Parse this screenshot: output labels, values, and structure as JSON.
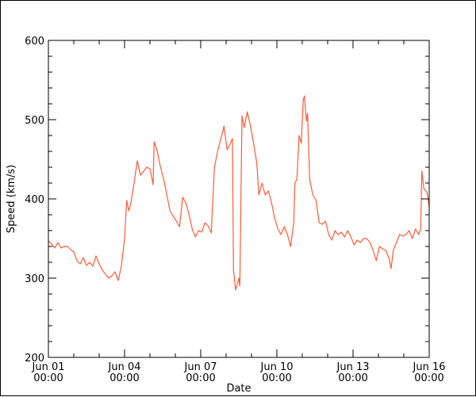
{
  "chart_data": {
    "type": "line",
    "title": "",
    "xlabel": "Date",
    "ylabel": "Speed (km/s)",
    "ylim": [
      200,
      600
    ],
    "xlim": [
      "2024-06-01T00:00",
      "2024-06-16T00:00"
    ],
    "grid": false,
    "colors": {
      "series": "#ff5a36",
      "axis": "#000000"
    },
    "yticks": [
      {
        "value": 200,
        "label": "200"
      },
      {
        "value": 300,
        "label": "300"
      },
      {
        "value": 400,
        "label": "400"
      },
      {
        "value": 500,
        "label": "500"
      },
      {
        "value": 600,
        "label": "600"
      }
    ],
    "xticks": [
      {
        "value": "2024-06-01T00:00",
        "line1": "Jun 01",
        "line2": "00:00"
      },
      {
        "value": "2024-06-04T00:00",
        "line1": "Jun 04",
        "line2": "00:00"
      },
      {
        "value": "2024-06-07T00:00",
        "line1": "Jun 07",
        "line2": "00:00"
      },
      {
        "value": "2024-06-10T00:00",
        "line1": "Jun 10",
        "line2": "00:00"
      },
      {
        "value": "2024-06-13T00:00",
        "line1": "Jun 13",
        "line2": "00:00"
      },
      {
        "value": "2024-06-16T00:00",
        "line1": "Jun 16",
        "line2": "00:00"
      }
    ],
    "series": [
      {
        "values": [
          [
            "2024-06-01T00:00",
            347
          ],
          [
            "2024-06-01T03:00",
            343
          ],
          [
            "2024-06-01T06:00",
            338
          ],
          [
            "2024-06-01T09:00",
            345
          ],
          [
            "2024-06-01T12:00",
            338
          ],
          [
            "2024-06-01T15:00",
            340
          ],
          [
            "2024-06-01T18:00",
            340
          ],
          [
            "2024-06-01T21:00",
            336
          ],
          [
            "2024-06-02T00:00",
            333
          ],
          [
            "2024-06-02T03:00",
            322
          ],
          [
            "2024-06-02T06:00",
            318
          ],
          [
            "2024-06-02T09:00",
            326
          ],
          [
            "2024-06-02T12:00",
            316
          ],
          [
            "2024-06-02T15:00",
            320
          ],
          [
            "2024-06-02T18:00",
            315
          ],
          [
            "2024-06-02T21:00",
            328
          ],
          [
            "2024-06-03T00:00",
            318
          ],
          [
            "2024-06-03T03:00",
            310
          ],
          [
            "2024-06-03T06:00",
            305
          ],
          [
            "2024-06-03T09:00",
            300
          ],
          [
            "2024-06-03T12:00",
            303
          ],
          [
            "2024-06-03T15:00",
            308
          ],
          [
            "2024-06-03T18:00",
            297
          ],
          [
            "2024-06-03T21:00",
            315
          ],
          [
            "2024-06-04T00:00",
            350
          ],
          [
            "2024-06-04T02:00",
            398
          ],
          [
            "2024-06-04T04:00",
            385
          ],
          [
            "2024-06-04T06:00",
            395
          ],
          [
            "2024-06-04T09:00",
            420
          ],
          [
            "2024-06-04T12:00",
            448
          ],
          [
            "2024-06-04T15:00",
            430
          ],
          [
            "2024-06-04T18:00",
            435
          ],
          [
            "2024-06-04T21:00",
            440
          ],
          [
            "2024-06-05T00:00",
            438
          ],
          [
            "2024-06-05T03:00",
            418
          ],
          [
            "2024-06-05T04:00",
            472
          ],
          [
            "2024-06-05T07:00",
            460
          ],
          [
            "2024-06-05T10:00",
            440
          ],
          [
            "2024-06-05T13:00",
            425
          ],
          [
            "2024-06-05T16:00",
            405
          ],
          [
            "2024-06-05T19:00",
            385
          ],
          [
            "2024-06-05T22:00",
            378
          ],
          [
            "2024-06-06T01:00",
            372
          ],
          [
            "2024-06-06T04:00",
            365
          ],
          [
            "2024-06-06T07:00",
            402
          ],
          [
            "2024-06-06T10:00",
            395
          ],
          [
            "2024-06-06T13:00",
            380
          ],
          [
            "2024-06-06T16:00",
            362
          ],
          [
            "2024-06-06T19:00",
            352
          ],
          [
            "2024-06-06T22:00",
            360
          ],
          [
            "2024-06-07T01:00",
            358
          ],
          [
            "2024-06-07T04:00",
            370
          ],
          [
            "2024-06-07T07:00",
            366
          ],
          [
            "2024-06-07T10:00",
            357
          ],
          [
            "2024-06-07T13:00",
            440
          ],
          [
            "2024-06-07T16:00",
            460
          ],
          [
            "2024-06-07T19:00",
            475
          ],
          [
            "2024-06-07T22:00",
            492
          ],
          [
            "2024-06-08T01:00",
            462
          ],
          [
            "2024-06-08T04:00",
            470
          ],
          [
            "2024-06-08T06:00",
            476
          ],
          [
            "2024-06-08T07:00",
            310
          ],
          [
            "2024-06-08T09:00",
            285
          ],
          [
            "2024-06-08T12:00",
            300
          ],
          [
            "2024-06-08T13:00",
            290
          ],
          [
            "2024-06-08T15:00",
            505
          ],
          [
            "2024-06-08T17:00",
            490
          ],
          [
            "2024-06-08T20:00",
            510
          ],
          [
            "2024-06-08T23:00",
            492
          ],
          [
            "2024-06-09T02:00",
            470
          ],
          [
            "2024-06-09T05:00",
            445
          ],
          [
            "2024-06-09T07:00",
            405
          ],
          [
            "2024-06-09T10:00",
            420
          ],
          [
            "2024-06-09T13:00",
            405
          ],
          [
            "2024-06-09T16:00",
            410
          ],
          [
            "2024-06-09T19:00",
            395
          ],
          [
            "2024-06-09T22:00",
            375
          ],
          [
            "2024-06-10T01:00",
            362
          ],
          [
            "2024-06-10T04:00",
            355
          ],
          [
            "2024-06-10T07:00",
            365
          ],
          [
            "2024-06-10T10:00",
            355
          ],
          [
            "2024-06-10T13:00",
            340
          ],
          [
            "2024-06-10T16:00",
            370
          ],
          [
            "2024-06-10T17:00",
            420
          ],
          [
            "2024-06-10T19:00",
            425
          ],
          [
            "2024-06-10T21:00",
            480
          ],
          [
            "2024-06-10T23:00",
            470
          ],
          [
            "2024-06-11T01:00",
            525
          ],
          [
            "2024-06-11T02:00",
            530
          ],
          [
            "2024-06-11T04:00",
            498
          ],
          [
            "2024-06-11T05:00",
            508
          ],
          [
            "2024-06-11T07:00",
            425
          ],
          [
            "2024-06-11T10:00",
            405
          ],
          [
            "2024-06-11T13:00",
            398
          ],
          [
            "2024-06-11T16:00",
            370
          ],
          [
            "2024-06-11T19:00",
            368
          ],
          [
            "2024-06-11T22:00",
            372
          ],
          [
            "2024-06-12T01:00",
            355
          ],
          [
            "2024-06-12T04:00",
            348
          ],
          [
            "2024-06-12T07:00",
            360
          ],
          [
            "2024-06-12T10:00",
            355
          ],
          [
            "2024-06-12T13:00",
            358
          ],
          [
            "2024-06-12T16:00",
            352
          ],
          [
            "2024-06-12T19:00",
            360
          ],
          [
            "2024-06-12T22:00",
            352
          ],
          [
            "2024-06-13T01:00",
            342
          ],
          [
            "2024-06-13T04:00",
            348
          ],
          [
            "2024-06-13T07:00",
            345
          ],
          [
            "2024-06-13T10:00",
            350
          ],
          [
            "2024-06-13T13:00",
            350
          ],
          [
            "2024-06-13T16:00",
            345
          ],
          [
            "2024-06-13T19:00",
            335
          ],
          [
            "2024-06-13T22:00",
            322
          ],
          [
            "2024-06-14T01:00",
            340
          ],
          [
            "2024-06-14T04:00",
            337
          ],
          [
            "2024-06-14T07:00",
            335
          ],
          [
            "2024-06-14T10:00",
            325
          ],
          [
            "2024-06-14T12:00",
            312
          ],
          [
            "2024-06-14T14:00",
            335
          ],
          [
            "2024-06-14T17:00",
            345
          ],
          [
            "2024-06-14T20:00",
            355
          ],
          [
            "2024-06-14T23:00",
            353
          ],
          [
            "2024-06-15T02:00",
            355
          ],
          [
            "2024-06-15T05:00",
            360
          ],
          [
            "2024-06-15T08:00",
            350
          ],
          [
            "2024-06-15T11:00",
            362
          ],
          [
            "2024-06-15T14:00",
            355
          ],
          [
            "2024-06-15T16:00",
            362
          ],
          [
            "2024-06-15T17:00",
            435
          ],
          [
            "2024-06-15T19:00",
            413
          ],
          [
            "2024-06-15T22:00",
            408
          ],
          [
            "2024-06-16T00:00",
            390
          ]
        ]
      }
    ]
  }
}
